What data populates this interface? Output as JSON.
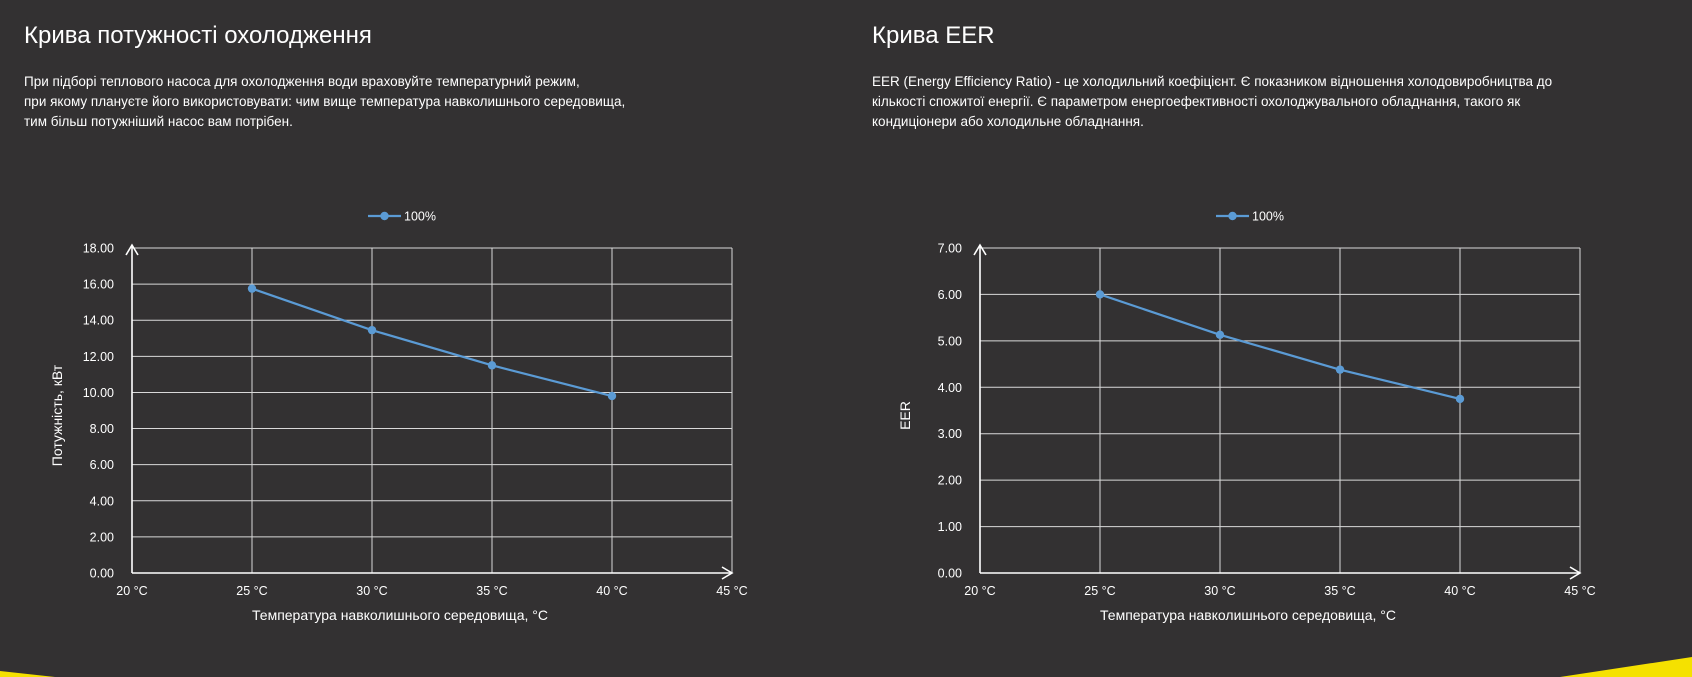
{
  "panels": [
    {
      "title": "Крива потужності охолодження",
      "description": [
        "При підборі теплового насоса для охолодження води враховуйте температурний режим,",
        "при якому плануєте його використовувати: чим вище температура навколишнього середовища,",
        "тим більш потужніший насос вам потрібен."
      ]
    },
    {
      "title": "Крива EER",
      "description": [
        "EER (Energy Efficiency Ratio) - це холодильний коефіцієнт. Є показником відношення холодовиробництва до",
        "кількості спожитої енергії. Є параметром енергоефективності охолоджувального обладнання, такого як",
        "кондиціонери або холодильне обладнання."
      ]
    }
  ],
  "chart_data": [
    {
      "type": "line",
      "x": [
        25,
        30,
        35,
        40
      ],
      "x_tick_labels": [
        "20 °C",
        "25 °C",
        "30 °C",
        "35 °C",
        "40 °C",
        "45 °C"
      ],
      "xlim": [
        20,
        45
      ],
      "ylim": [
        0,
        18
      ],
      "y_step": 2,
      "y_decimals": 2,
      "xlabel": "Температура навколишнього середовища, °C",
      "ylabel": "Потужність, кВт",
      "grid": true,
      "legend_position": "top",
      "series": [
        {
          "name": "100%",
          "color": "#5b9bd5",
          "values": [
            15.75,
            13.45,
            11.5,
            9.8
          ]
        }
      ]
    },
    {
      "type": "line",
      "x": [
        25,
        30,
        35,
        40
      ],
      "x_tick_labels": [
        "20 °C",
        "25 °C",
        "30 °C",
        "35 °C",
        "40 °C",
        "45 °C"
      ],
      "xlim": [
        20,
        45
      ],
      "ylim": [
        0,
        7
      ],
      "y_step": 1,
      "y_decimals": 2,
      "xlabel": "Температура навколишнього середовища, °C",
      "ylabel": "EER",
      "grid": true,
      "legend_position": "top",
      "series": [
        {
          "name": "100%",
          "color": "#5b9bd5",
          "values": [
            6.0,
            5.13,
            4.38,
            3.75
          ]
        }
      ]
    }
  ],
  "accent_color": "#f5e100"
}
